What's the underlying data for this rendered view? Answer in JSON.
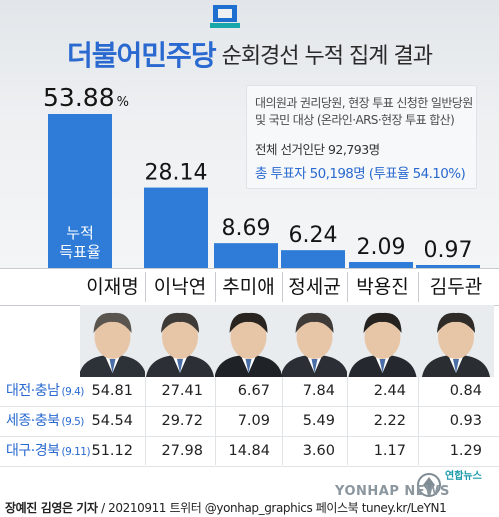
{
  "header": {
    "party": "더불어민주당",
    "subtitle": "순회경선 누적 집계 결과"
  },
  "info": {
    "line1": "대의원과 권리당원, 현장 투표 신청한 일반당원",
    "line2": "및 국민 대상 (온라인·ARS·현장 투표 합산)",
    "total": "전체 선거인단 92,793명",
    "voters": "총 투표자 50,198명 (투표율 54.10%)"
  },
  "chart_data": {
    "type": "bar",
    "title": "순회경선 누적 집계 결과",
    "categories": [
      "이재명",
      "이낙연",
      "추미애",
      "정세균",
      "박용진",
      "김두관"
    ],
    "values": [
      53.88,
      28.14,
      8.69,
      6.24,
      2.09,
      0.97
    ],
    "value_labels": [
      "53.88",
      "28.14",
      "8.69",
      "6.24",
      "2.09",
      "0.97"
    ],
    "unit": "%",
    "bar_annotation": "누적 득표율",
    "ylim": [
      0,
      60
    ],
    "bar_color": "#2f7bd8",
    "grid": false,
    "legend": "none"
  },
  "regions": [
    {
      "name": "대전·충남",
      "date": "(9.4)",
      "values": [
        "54.81",
        "27.41",
        "6.67",
        "7.84",
        "2.44",
        "0.84"
      ]
    },
    {
      "name": "세종·충북",
      "date": "(9.5)",
      "values": [
        "54.54",
        "29.72",
        "7.09",
        "5.49",
        "2.22",
        "0.93"
      ]
    },
    {
      "name": "대구·경북",
      "date": "(9.11)",
      "values": [
        "51.12",
        "27.98",
        "14.84",
        "3.60",
        "1.17",
        "1.29"
      ]
    }
  ],
  "footer": {
    "author": "장예진 김영은 기자",
    "credit": " / 20210911  트위터 @yonhap_graphics  페이스북 tuney.kr/LeYN1",
    "logo_text": "YONHAP NEWS",
    "logo_kr": "연합뉴스"
  },
  "colors": {
    "accent": "#2a6ad0",
    "bar": "#2f7bd8",
    "logo_teal": "#1b9aaa"
  }
}
